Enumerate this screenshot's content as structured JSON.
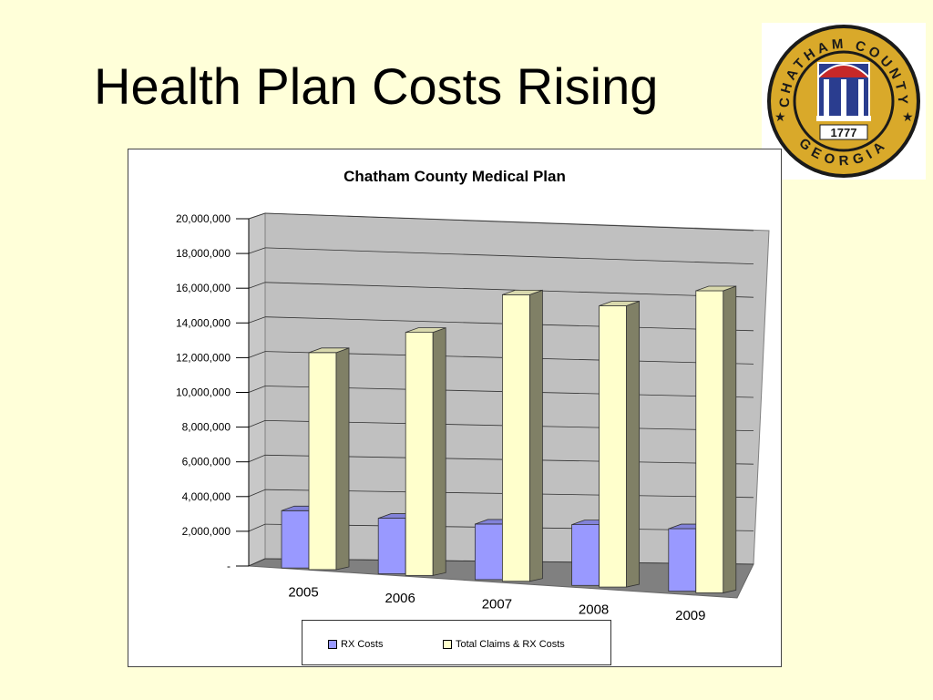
{
  "slide": {
    "title": "Health Plan Costs Rising"
  },
  "seal": {
    "top_text": "CHATHAM COUNTY",
    "bottom_text": "GEORGIA",
    "year": "1777",
    "ring_color": "#1a1a1a",
    "gold_color": "#d9a92a",
    "blue_color": "#2a3d8f"
  },
  "chart_data": {
    "type": "bar",
    "title": "Chatham County Medical Plan",
    "categories": [
      "2005",
      "2006",
      "2007",
      "2008",
      "2009"
    ],
    "series": [
      {
        "name": "RX Costs",
        "color": "#9999ff",
        "values": [
          3300000,
          3200000,
          3200000,
          3500000,
          3600000
        ]
      },
      {
        "name": "Total Claims & RX Costs",
        "color": "#ffffcc",
        "values": [
          12500000,
          14000000,
          16500000,
          16200000,
          17400000
        ]
      }
    ],
    "yticks": [
      "-",
      "2,000,000",
      "4,000,000",
      "6,000,000",
      "8,000,000",
      "10,000,000",
      "12,000,000",
      "14,000,000",
      "16,000,000",
      "18,000,000",
      "20,000,000"
    ],
    "ylim": [
      0,
      20000000
    ],
    "grid": true,
    "legend_position": "bottom",
    "style": "3d-clustered-column"
  }
}
